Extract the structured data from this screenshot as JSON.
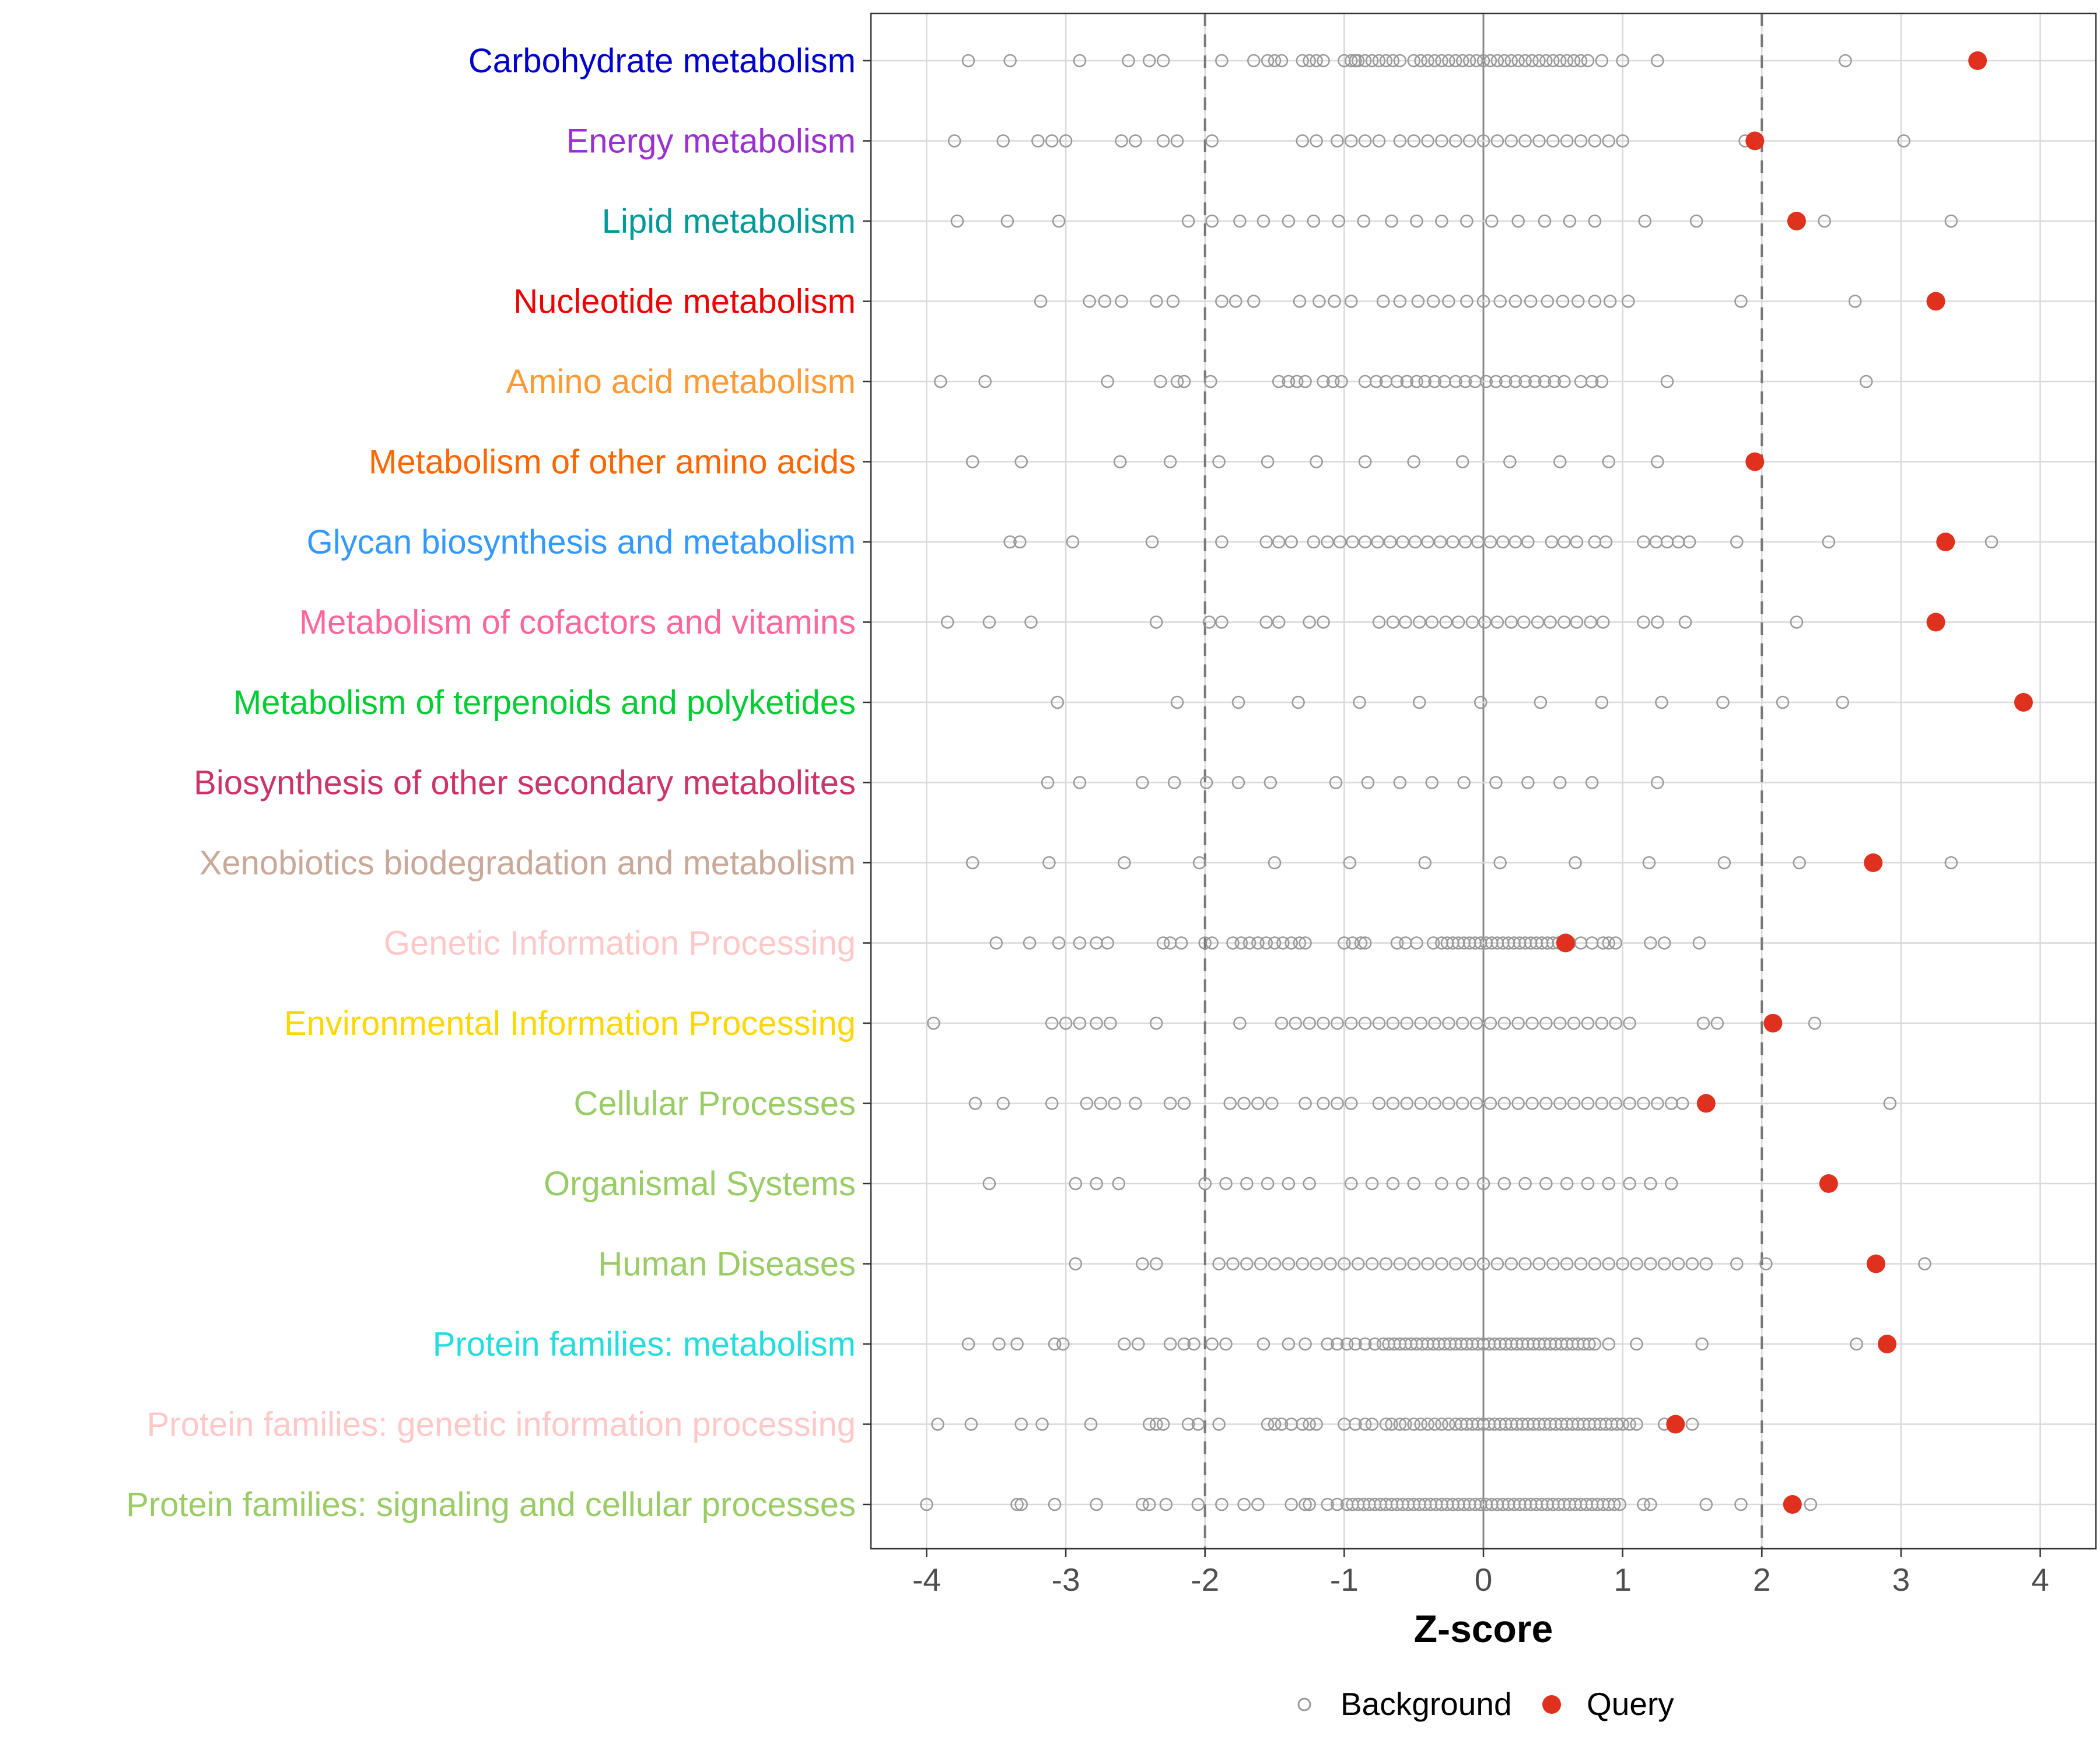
{
  "chart_data": {
    "type": "scatter",
    "title": "",
    "xlabel": "Z-score",
    "ylabel": "",
    "xlim": [
      -4.4,
      4.4
    ],
    "x_ticks": [
      "-4",
      "-3",
      "-2",
      "-1",
      "0",
      "1",
      "2",
      "3",
      "4"
    ],
    "reference_lines": [
      -2,
      2
    ],
    "legend": {
      "position": "bottom",
      "items": [
        {
          "name": "Background",
          "marker": "open-circle",
          "color": "#999999"
        },
        {
          "name": "Query",
          "marker": "filled-circle",
          "color": "#e0301e"
        }
      ]
    },
    "categories": [
      {
        "label": "Carbohydrate metabolism",
        "color": "#0000cc",
        "query": 3.55,
        "background": [
          -3.7,
          -3.4,
          -2.9,
          -2.55,
          -2.4,
          -2.3,
          -1.88,
          -1.65,
          -1.55,
          -1.5,
          -1.45,
          -1.3,
          -1.25,
          -1.2,
          -1.15,
          -1.0,
          -0.95,
          -0.92,
          -0.9,
          -0.85,
          -0.8,
          -0.75,
          -0.7,
          -0.65,
          -0.6,
          -0.5,
          -0.45,
          -0.4,
          -0.35,
          -0.3,
          -0.25,
          -0.2,
          -0.15,
          -0.1,
          -0.05,
          0.0,
          0.05,
          0.1,
          0.15,
          0.2,
          0.25,
          0.3,
          0.35,
          0.4,
          0.45,
          0.5,
          0.55,
          0.6,
          0.65,
          0.7,
          0.75,
          0.85,
          1.0,
          1.25,
          2.6
        ]
      },
      {
        "label": "Energy metabolism",
        "color": "#9b30d0",
        "query": 1.95,
        "background": [
          -3.8,
          -3.45,
          -3.2,
          -3.1,
          -3.0,
          -2.6,
          -2.5,
          -2.3,
          -2.2,
          -1.95,
          -1.3,
          -1.2,
          -1.05,
          -0.95,
          -0.85,
          -0.75,
          -0.6,
          -0.5,
          -0.4,
          -0.3,
          -0.2,
          -0.1,
          0.0,
          0.1,
          0.2,
          0.3,
          0.4,
          0.5,
          0.6,
          0.7,
          0.8,
          0.9,
          1.0,
          1.88,
          3.02
        ]
      },
      {
        "label": "Lipid metabolism",
        "color": "#009999",
        "query": 2.25,
        "background": [
          -3.78,
          -3.42,
          -3.05,
          -2.12,
          -1.95,
          -1.75,
          -1.58,
          -1.4,
          -1.22,
          -1.04,
          -0.86,
          -0.66,
          -0.48,
          -0.3,
          -0.12,
          0.06,
          0.25,
          0.44,
          0.62,
          0.8,
          1.16,
          1.53,
          2.45,
          3.36
        ]
      },
      {
        "label": "Nucleotide metabolism",
        "color": "#ee0000",
        "query": 3.25,
        "background": [
          -3.18,
          -2.83,
          -2.72,
          -2.6,
          -2.35,
          -2.23,
          -1.88,
          -1.78,
          -1.65,
          -1.32,
          -1.18,
          -1.07,
          -0.95,
          -0.72,
          -0.6,
          -0.47,
          -0.36,
          -0.25,
          -0.12,
          0.0,
          0.12,
          0.23,
          0.34,
          0.46,
          0.57,
          0.68,
          0.8,
          0.91,
          1.04,
          1.85,
          2.67
        ]
      },
      {
        "label": "Amino acid metabolism",
        "color": "#ff9933",
        "query": null,
        "background": [
          -3.9,
          -3.58,
          -2.7,
          -2.32,
          -2.2,
          -2.15,
          -1.96,
          -1.47,
          -1.4,
          -1.34,
          -1.28,
          -1.15,
          -1.08,
          -1.02,
          -0.85,
          -0.77,
          -0.7,
          -0.62,
          -0.55,
          -0.48,
          -0.42,
          -0.35,
          -0.28,
          -0.2,
          -0.13,
          -0.06,
          0.02,
          0.09,
          0.16,
          0.23,
          0.3,
          0.37,
          0.44,
          0.51,
          0.58,
          0.7,
          0.78,
          0.85,
          1.32,
          2.75
        ]
      },
      {
        "label": "Metabolism of other amino acids",
        "color": "#ff6600",
        "query": 1.95,
        "background": [
          -3.67,
          -3.32,
          -2.61,
          -2.25,
          -1.9,
          -1.55,
          -1.2,
          -0.85,
          -0.5,
          -0.15,
          0.19,
          0.55,
          0.9,
          1.25
        ]
      },
      {
        "label": "Glycan biosynthesis and metabolism",
        "color": "#3399ff",
        "query": 3.32,
        "background": [
          -3.4,
          -3.33,
          -2.95,
          -2.38,
          -1.88,
          -1.56,
          -1.47,
          -1.38,
          -1.22,
          -1.12,
          -1.03,
          -0.94,
          -0.85,
          -0.76,
          -0.67,
          -0.58,
          -0.49,
          -0.4,
          -0.31,
          -0.22,
          -0.13,
          -0.04,
          0.05,
          0.14,
          0.23,
          0.32,
          0.49,
          0.58,
          0.67,
          0.8,
          0.88,
          1.15,
          1.24,
          1.32,
          1.4,
          1.48,
          1.82,
          2.48,
          3.65
        ]
      },
      {
        "label": "Metabolism of cofactors and vitamins",
        "color": "#ff6699",
        "query": 3.25,
        "background": [
          -3.85,
          -3.55,
          -3.25,
          -2.35,
          -1.97,
          -1.88,
          -1.56,
          -1.47,
          -1.25,
          -1.15,
          -0.75,
          -0.65,
          -0.56,
          -0.46,
          -0.37,
          -0.27,
          -0.18,
          -0.08,
          0.01,
          0.1,
          0.2,
          0.29,
          0.39,
          0.48,
          0.58,
          0.67,
          0.77,
          0.86,
          1.15,
          1.25,
          1.45,
          2.25
        ]
      },
      {
        "label": "Metabolism of terpenoids and polyketides",
        "color": "#00cc33",
        "query": 3.88,
        "background": [
          -3.06,
          -2.2,
          -1.76,
          -1.33,
          -0.89,
          -0.46,
          -0.02,
          0.41,
          0.85,
          1.28,
          1.72,
          2.15,
          2.58
        ]
      },
      {
        "label": "Biosynthesis of other secondary metabolites",
        "color": "#cc3366",
        "query": null,
        "background": [
          -3.13,
          -2.9,
          -2.45,
          -2.22,
          -1.99,
          -1.76,
          -1.53,
          -1.06,
          -0.83,
          -0.6,
          -0.37,
          -0.14,
          0.09,
          0.32,
          0.55,
          0.78,
          1.25
        ]
      },
      {
        "label": "Xenobiotics biodegradation and metabolism",
        "color": "#c8a898",
        "query": 2.8,
        "background": [
          -3.67,
          -3.12,
          -2.58,
          -2.04,
          -1.5,
          -0.96,
          -0.42,
          0.12,
          0.66,
          1.19,
          1.73,
          2.27,
          3.36
        ]
      },
      {
        "label": "Genetic Information Processing",
        "color": "#ffc8c8",
        "query": 0.59,
        "background": [
          -3.5,
          -3.26,
          -3.05,
          -2.9,
          -2.78,
          -2.7,
          -2.3,
          -2.25,
          -2.17,
          -2.0,
          -1.95,
          -1.8,
          -1.74,
          -1.68,
          -1.62,
          -1.56,
          -1.5,
          -1.44,
          -1.38,
          -1.32,
          -1.28,
          -1.0,
          -0.94,
          -0.88,
          -0.85,
          -0.62,
          -0.56,
          -0.48,
          -0.36,
          -0.3,
          -0.26,
          -0.22,
          -0.18,
          -0.14,
          -0.1,
          -0.06,
          -0.02,
          0.02,
          0.06,
          0.1,
          0.14,
          0.18,
          0.22,
          0.26,
          0.3,
          0.34,
          0.38,
          0.42,
          0.46,
          0.5,
          0.54,
          0.62,
          0.7,
          0.78,
          0.86,
          0.9,
          0.95,
          1.2,
          1.3,
          1.55
        ]
      },
      {
        "label": "Environmental Information Processing",
        "color": "#ffd700",
        "query": 2.08,
        "background": [
          -3.95,
          -3.1,
          -3.0,
          -2.9,
          -2.78,
          -2.68,
          -2.35,
          -1.75,
          -1.45,
          -1.35,
          -1.25,
          -1.15,
          -1.05,
          -0.95,
          -0.85,
          -0.75,
          -0.65,
          -0.55,
          -0.45,
          -0.35,
          -0.25,
          -0.15,
          -0.05,
          0.05,
          0.15,
          0.25,
          0.35,
          0.45,
          0.55,
          0.65,
          0.75,
          0.85,
          0.95,
          1.05,
          1.58,
          1.68,
          2.38
        ]
      },
      {
        "label": "Cellular Processes",
        "color": "#99cc66",
        "query": 1.6,
        "background": [
          -3.65,
          -3.45,
          -3.1,
          -2.85,
          -2.75,
          -2.65,
          -2.5,
          -2.25,
          -2.15,
          -1.82,
          -1.72,
          -1.62,
          -1.52,
          -1.28,
          -1.15,
          -1.05,
          -0.95,
          -0.75,
          -0.65,
          -0.55,
          -0.45,
          -0.35,
          -0.25,
          -0.15,
          -0.05,
          0.05,
          0.15,
          0.25,
          0.35,
          0.45,
          0.55,
          0.65,
          0.75,
          0.85,
          0.95,
          1.05,
          1.15,
          1.25,
          1.35,
          1.43,
          2.92
        ]
      },
      {
        "label": "Organismal Systems",
        "color": "#99cc66",
        "query": 2.48,
        "background": [
          -3.55,
          -2.93,
          -2.78,
          -2.62,
          -2.0,
          -1.85,
          -1.7,
          -1.55,
          -1.4,
          -1.25,
          -0.95,
          -0.8,
          -0.65,
          -0.5,
          -0.3,
          -0.15,
          0.0,
          0.15,
          0.3,
          0.45,
          0.6,
          0.75,
          0.9,
          1.05,
          1.2,
          1.35
        ]
      },
      {
        "label": "Human Diseases",
        "color": "#99cc66",
        "query": 2.82,
        "background": [
          -2.93,
          -2.45,
          -2.35,
          -1.9,
          -1.8,
          -1.7,
          -1.6,
          -1.5,
          -1.4,
          -1.3,
          -1.2,
          -1.1,
          -1.0,
          -0.9,
          -0.8,
          -0.7,
          -0.6,
          -0.5,
          -0.4,
          -0.3,
          -0.2,
          -0.1,
          0.0,
          0.1,
          0.2,
          0.3,
          0.4,
          0.5,
          0.6,
          0.7,
          0.8,
          0.9,
          1.0,
          1.1,
          1.2,
          1.3,
          1.4,
          1.5,
          1.6,
          1.82,
          2.03,
          3.17
        ]
      },
      {
        "label": "Protein families: metabolism",
        "color": "#22dddd",
        "query": 2.9,
        "background": [
          -3.7,
          -3.48,
          -3.35,
          -3.08,
          -3.02,
          -2.58,
          -2.48,
          -2.25,
          -2.15,
          -2.08,
          -1.95,
          -1.85,
          -1.58,
          -1.4,
          -1.28,
          -1.12,
          -1.05,
          -0.98,
          -0.92,
          -0.85,
          -0.78,
          -0.72,
          -0.68,
          -0.64,
          -0.6,
          -0.56,
          -0.52,
          -0.48,
          -0.44,
          -0.4,
          -0.36,
          -0.32,
          -0.28,
          -0.24,
          -0.2,
          -0.16,
          -0.12,
          -0.08,
          -0.04,
          0.0,
          0.04,
          0.08,
          0.12,
          0.16,
          0.2,
          0.24,
          0.28,
          0.32,
          0.36,
          0.4,
          0.44,
          0.48,
          0.52,
          0.56,
          0.6,
          0.64,
          0.68,
          0.72,
          0.76,
          0.8,
          0.9,
          1.1,
          1.57,
          2.68
        ]
      },
      {
        "label": "Protein families: genetic information processing",
        "color": "#ffc8c8",
        "query": 1.38,
        "background": [
          -3.92,
          -3.68,
          -3.32,
          -3.17,
          -2.82,
          -2.4,
          -2.35,
          -2.3,
          -2.12,
          -2.05,
          -1.9,
          -1.55,
          -1.5,
          -1.45,
          -1.38,
          -1.3,
          -1.25,
          -1.2,
          -1.0,
          -0.92,
          -0.85,
          -0.8,
          -0.7,
          -0.66,
          -0.6,
          -0.56,
          -0.5,
          -0.45,
          -0.4,
          -0.35,
          -0.3,
          -0.25,
          -0.2,
          -0.16,
          -0.12,
          -0.08,
          -0.04,
          0.0,
          0.04,
          0.08,
          0.12,
          0.16,
          0.2,
          0.24,
          0.28,
          0.32,
          0.36,
          0.4,
          0.44,
          0.48,
          0.52,
          0.56,
          0.6,
          0.64,
          0.68,
          0.72,
          0.76,
          0.8,
          0.84,
          0.88,
          0.92,
          0.96,
          1.0,
          1.05,
          1.1,
          1.3,
          1.5
        ]
      },
      {
        "label": "Protein families: signaling and cellular processes",
        "color": "#99cc66",
        "query": 2.22,
        "background": [
          -4.0,
          -3.35,
          -3.32,
          -3.08,
          -2.78,
          -2.45,
          -2.4,
          -2.28,
          -2.05,
          -1.88,
          -1.72,
          -1.62,
          -1.38,
          -1.28,
          -1.25,
          -1.12,
          -1.05,
          -0.98,
          -0.94,
          -0.9,
          -0.86,
          -0.82,
          -0.78,
          -0.74,
          -0.7,
          -0.66,
          -0.62,
          -0.58,
          -0.54,
          -0.5,
          -0.46,
          -0.42,
          -0.38,
          -0.34,
          -0.3,
          -0.26,
          -0.22,
          -0.18,
          -0.14,
          -0.1,
          -0.06,
          -0.02,
          0.02,
          0.06,
          0.1,
          0.14,
          0.18,
          0.22,
          0.26,
          0.3,
          0.34,
          0.38,
          0.42,
          0.46,
          0.5,
          0.54,
          0.58,
          0.62,
          0.66,
          0.7,
          0.74,
          0.78,
          0.82,
          0.86,
          0.9,
          0.94,
          0.98,
          1.15,
          1.2,
          1.6,
          1.85,
          2.35
        ]
      }
    ]
  }
}
